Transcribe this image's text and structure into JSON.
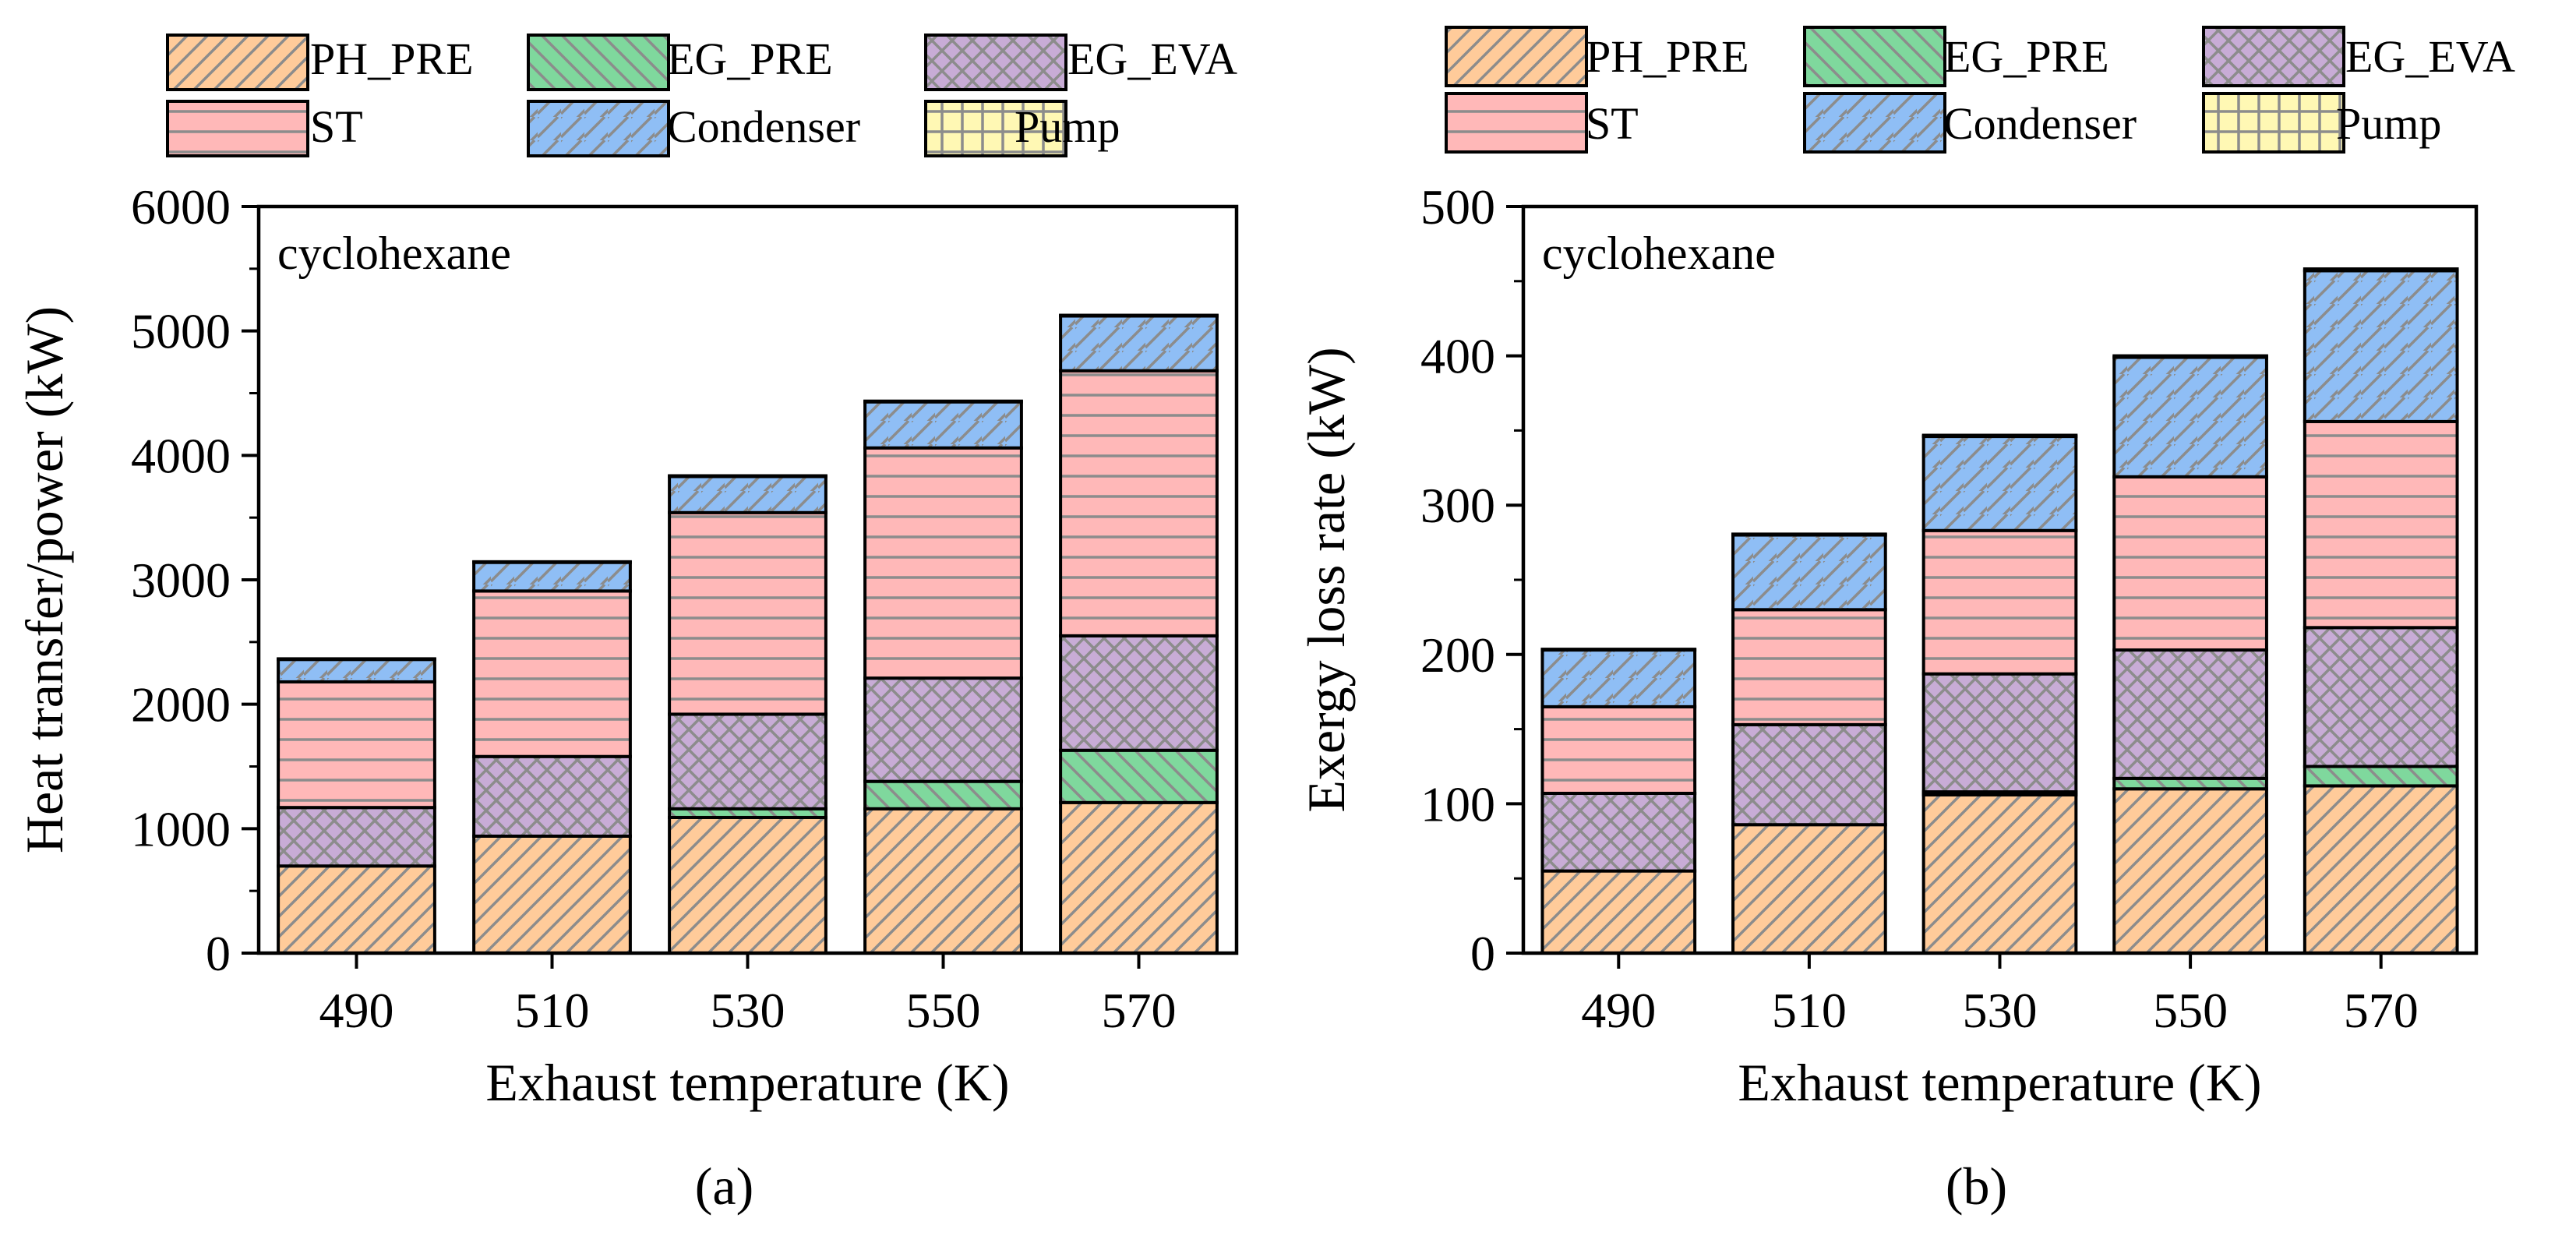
{
  "figure": {
    "colors": {
      "PH_PRE": "#ffcb9a",
      "EG_PRE": "#7fd89d",
      "EG_EVA": "#c8acd6",
      "ST": "#ffb8b8",
      "Condenser": "#8fbef5",
      "Pump": "#fff8b4",
      "hatch": "#8c8c8c"
    }
  },
  "chart_data": [
    {
      "type": "bar",
      "stacked": true,
      "panel_label": "(a)",
      "annotation": "cyclohexane",
      "xlabel": "Exhaust temperature (K)",
      "ylabel": "Heat transfer/power (kW)",
      "ylim": [
        0,
        6000
      ],
      "yticks": [
        "0",
        "1000",
        "2000",
        "3000",
        "4000",
        "5000",
        "6000"
      ],
      "ytick_values": [
        0,
        1000,
        2000,
        3000,
        4000,
        5000,
        6000
      ],
      "categories": [
        "490",
        "510",
        "530",
        "550",
        "570"
      ],
      "legend": [
        "PH_PRE",
        "EG_PRE",
        "EG_EVA",
        "ST",
        "Condenser",
        "Pump"
      ],
      "legend_position": "top",
      "series": [
        {
          "name": "PH_PRE",
          "values": [
            700,
            940,
            1090,
            1160,
            1210
          ]
        },
        {
          "name": "EG_PRE",
          "values": [
            0,
            0,
            70,
            220,
            420
          ]
        },
        {
          "name": "EG_EVA",
          "values": [
            470,
            640,
            760,
            830,
            920
          ]
        },
        {
          "name": "ST",
          "values": [
            1010,
            1330,
            1620,
            1850,
            2130
          ]
        },
        {
          "name": "Condenser",
          "values": [
            180,
            230,
            290,
            370,
            440
          ]
        },
        {
          "name": "Pump",
          "values": [
            5,
            5,
            6,
            6,
            6
          ]
        }
      ]
    },
    {
      "type": "bar",
      "stacked": true,
      "panel_label": "(b)",
      "annotation": "cyclohexane",
      "xlabel": "Exhaust temperature (K)",
      "ylabel": "Exergy loss rate (kW)",
      "ylim": [
        0,
        500
      ],
      "yticks": [
        "0",
        "100",
        "200",
        "300",
        "400",
        "500"
      ],
      "ytick_values": [
        0,
        100,
        200,
        300,
        400,
        500
      ],
      "categories": [
        "490",
        "510",
        "530",
        "550",
        "570"
      ],
      "legend": [
        "PH_PRE",
        "EG_PRE",
        "EG_EVA",
        "ST",
        "Condenser",
        "Pump"
      ],
      "legend_position": "top",
      "series": [
        {
          "name": "PH_PRE",
          "values": [
            55,
            86,
            106,
            110,
            112
          ]
        },
        {
          "name": "EG_PRE",
          "values": [
            0,
            0,
            2,
            7,
            13
          ]
        },
        {
          "name": "EG_EVA",
          "values": [
            52,
            67,
            79,
            86,
            93
          ]
        },
        {
          "name": "ST",
          "values": [
            58,
            77,
            96,
            116,
            138
          ]
        },
        {
          "name": "Condenser",
          "values": [
            38,
            50,
            63,
            80,
            101
          ]
        },
        {
          "name": "Pump",
          "values": [
            0.5,
            0.6,
            0.8,
            1.0,
            1.2
          ]
        }
      ]
    }
  ]
}
